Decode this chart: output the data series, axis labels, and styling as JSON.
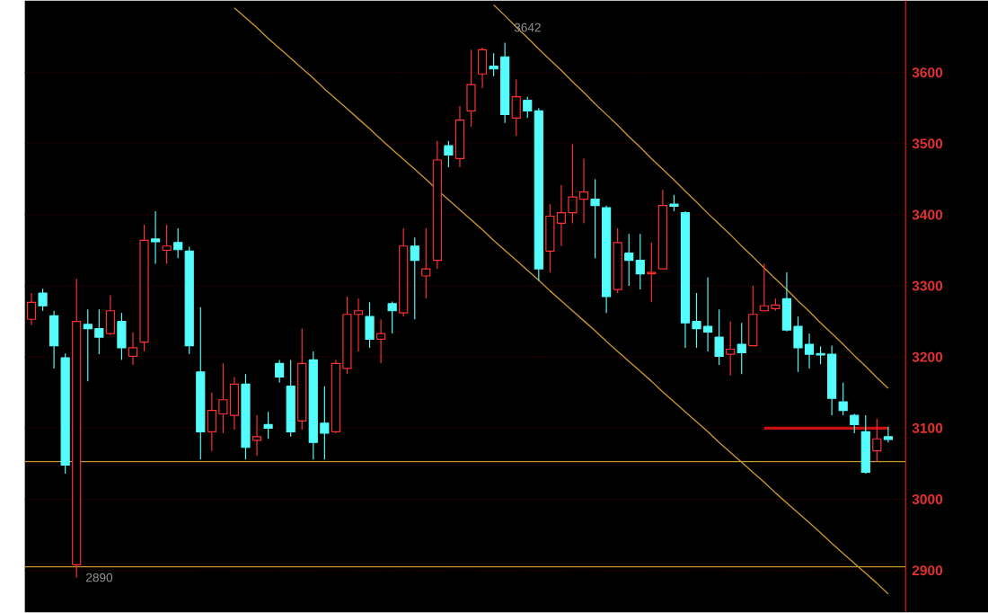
{
  "chart_data": {
    "type": "candlestick",
    "categories": [
      null,
      null,
      null,
      null,
      null,
      null,
      null,
      null,
      null,
      null,
      null,
      null,
      null,
      null,
      null,
      null,
      null,
      null,
      null,
      null,
      null,
      null,
      null,
      null,
      null,
      null,
      null,
      null,
      null,
      null,
      null,
      null,
      null,
      null,
      null,
      null,
      null,
      null,
      null,
      null,
      null,
      null,
      null,
      null,
      null,
      null,
      null,
      null,
      null,
      null,
      null,
      null,
      null,
      null,
      null,
      null,
      null,
      null,
      null,
      null,
      null,
      null,
      null,
      null,
      null,
      null,
      null,
      null,
      null,
      null,
      null,
      null,
      null,
      null,
      null,
      null,
      null
    ],
    "ohlc": [
      [
        3253,
        3290,
        3245,
        3277
      ],
      [
        3290,
        3296,
        3265,
        3272
      ],
      [
        3258,
        3265,
        3184,
        3216
      ],
      [
        3199,
        3205,
        3036,
        3048
      ],
      [
        2908,
        3310,
        2890,
        3250
      ],
      [
        3246,
        3267,
        3166,
        3240
      ],
      [
        3240,
        3267,
        3204,
        3228
      ],
      [
        3233,
        3287,
        3231,
        3265
      ],
      [
        3250,
        3262,
        3196,
        3213
      ],
      [
        3201,
        3235,
        3189,
        3213
      ],
      [
        3221,
        3386,
        3208,
        3364
      ],
      [
        3366,
        3405,
        3331,
        3362
      ],
      [
        3350,
        3386,
        3331,
        3356
      ],
      [
        3361,
        3381,
        3339,
        3351
      ],
      [
        3349,
        3355,
        3204,
        3216
      ],
      [
        3179,
        3270,
        3056,
        3095
      ],
      [
        3095,
        3150,
        3068,
        3125
      ],
      [
        3120,
        3191,
        3093,
        3140
      ],
      [
        3118,
        3172,
        3098,
        3162
      ],
      [
        3162,
        3176,
        3056,
        3073
      ],
      [
        3083,
        3118,
        3061,
        3088
      ],
      [
        3105,
        3123,
        3085,
        3100
      ],
      [
        3191,
        3196,
        3164,
        3172
      ],
      [
        3159,
        3196,
        3088,
        3095
      ],
      [
        3110,
        3240,
        3098,
        3191
      ],
      [
        3196,
        3208,
        3056,
        3080
      ],
      [
        3107,
        3159,
        3056,
        3093
      ],
      [
        3095,
        3196,
        3093,
        3191
      ],
      [
        3184,
        3285,
        3176,
        3260
      ],
      [
        3260,
        3282,
        3208,
        3265
      ],
      [
        3257,
        3277,
        3213,
        3225
      ],
      [
        3225,
        3253,
        3191,
        3233
      ],
      [
        3275,
        3278,
        3233,
        3265
      ],
      [
        3262,
        3381,
        3257,
        3356
      ],
      [
        3356,
        3368,
        3253,
        3336
      ],
      [
        3314,
        3381,
        3282,
        3324
      ],
      [
        3336,
        3504,
        3324,
        3477
      ],
      [
        3497,
        3504,
        3467,
        3484
      ],
      [
        3479,
        3553,
        3467,
        3533
      ],
      [
        3546,
        3632,
        3524,
        3583
      ],
      [
        3598,
        3635,
        3578,
        3632
      ],
      [
        3609,
        3627,
        3595,
        3605
      ],
      [
        3622,
        3642,
        3529,
        3541
      ],
      [
        3536,
        3590,
        3511,
        3566
      ],
      [
        3561,
        3566,
        3536,
        3546
      ],
      [
        3546,
        3550,
        3307,
        3324
      ],
      [
        3349,
        3415,
        3319,
        3398
      ],
      [
        3388,
        3442,
        3356,
        3403
      ],
      [
        3403,
        3499,
        3388,
        3425
      ],
      [
        3422,
        3479,
        3388,
        3432
      ],
      [
        3422,
        3450,
        3339,
        3413
      ],
      [
        3410,
        3413,
        3262,
        3285
      ],
      [
        3295,
        3381,
        3290,
        3361
      ],
      [
        3346,
        3373,
        3300,
        3336
      ],
      [
        3336,
        3373,
        3295,
        3317
      ],
      [
        3317,
        3361,
        3277,
        3319
      ],
      [
        3324,
        3435,
        3324,
        3413
      ],
      [
        3415,
        3428,
        3405,
        3412
      ],
      [
        3403,
        3405,
        3213,
        3248
      ],
      [
        3250,
        3290,
        3213,
        3240
      ],
      [
        3243,
        3312,
        3208,
        3235
      ],
      [
        3228,
        3267,
        3189,
        3201
      ],
      [
        3204,
        3250,
        3174,
        3211
      ],
      [
        3218,
        3248,
        3176,
        3206
      ],
      [
        3216,
        3300,
        3216,
        3260
      ],
      [
        3265,
        3331,
        3265,
        3272
      ],
      [
        3268,
        3282,
        3265,
        3273
      ],
      [
        3282,
        3319,
        3236,
        3238
      ],
      [
        3243,
        3257,
        3179,
        3213
      ],
      [
        3218,
        3233,
        3184,
        3204
      ],
      [
        3205,
        3215,
        3190,
        3203
      ],
      [
        3204,
        3216,
        3118,
        3142
      ],
      [
        3137,
        3164,
        3118,
        3125
      ],
      [
        3118,
        3120,
        3093,
        3105
      ],
      [
        3095,
        3118,
        3036,
        3038
      ],
      [
        3068,
        3113,
        3053,
        3085
      ],
      [
        3088,
        3102,
        3080,
        3084
      ]
    ],
    "colors": [
      "#ff3232",
      "#54fcfc",
      "#54fcfc",
      "#54fcfc",
      "#ff3232",
      "#54fcfc",
      "#54fcfc",
      "#ff3232",
      "#54fcfc",
      "#ff3232",
      "#ff3232",
      "#54fcfc",
      "#ff3232",
      "#54fcfc",
      "#54fcfc",
      "#54fcfc",
      "#ff3232",
      "#ff3232",
      "#ff3232",
      "#54fcfc",
      "#ff3232",
      "#54fcfc",
      "#54fcfc",
      "#54fcfc",
      "#ff3232",
      "#54fcfc",
      "#54fcfc",
      "#ff3232",
      "#ff3232",
      "#ff3232",
      "#54fcfc",
      "#ff3232",
      "#54fcfc",
      "#ff3232",
      "#54fcfc",
      "#ff3232",
      "#ff3232",
      "#54fcfc",
      "#ff3232",
      "#ff3232",
      "#ff3232",
      "#54fcfc",
      "#54fcfc",
      "#ff3232",
      "#54fcfc",
      "#54fcfc",
      "#ff3232",
      "#ff3232",
      "#ff3232",
      "#ff3232",
      "#54fcfc",
      "#54fcfc",
      "#ff3232",
      "#54fcfc",
      "#54fcfc",
      "#ff3232",
      "#ff3232",
      "#54fcfc",
      "#54fcfc",
      "#54fcfc",
      "#54fcfc",
      "#54fcfc",
      "#ff3232",
      "#54fcfc",
      "#ff3232",
      "#ff3232",
      "#ff3232",
      "#54fcfc",
      "#54fcfc",
      "#54fcfc",
      "#54fcfc",
      "#54fcfc",
      "#54fcfc",
      "#54fcfc",
      "#54fcfc",
      "#ff3232",
      "#54fcfc"
    ],
    "series": [
      {
        "type": "line",
        "values": [
          null,
          null,
          null,
          null,
          null,
          null,
          null,
          null,
          null,
          null,
          null,
          null,
          null,
          null,
          null,
          null,
          null,
          null,
          null,
          null,
          null,
          null,
          null,
          null,
          null,
          null,
          null,
          null,
          null,
          null,
          null,
          null,
          null,
          null,
          null,
          null,
          null,
          null,
          null,
          null,
          null,
          3695,
          3680,
          3664,
          3649,
          3633,
          3618,
          3603,
          3587,
          3572,
          3556,
          3541,
          3526,
          3510,
          3495,
          3479,
          3464,
          3449,
          3433,
          3418,
          3402,
          3387,
          3372,
          3356,
          3341,
          3325,
          3310,
          3295,
          3279,
          3264,
          3248,
          3233,
          3218,
          3202,
          3187,
          3171,
          3156
        ],
        "color": "#c89632"
      },
      {
        "type": "line",
        "values": [
          null,
          null,
          null,
          null,
          null,
          null,
          null,
          null,
          null,
          null,
          null,
          null,
          null,
          null,
          null,
          null,
          null,
          null,
          3691,
          3677,
          3663,
          3648,
          3634,
          3620,
          3606,
          3592,
          3577,
          3563,
          3549,
          3535,
          3521,
          3506,
          3492,
          3478,
          3464,
          3450,
          3435,
          3421,
          3407,
          3393,
          3379,
          3364,
          3350,
          3336,
          3322,
          3308,
          3293,
          3279,
          3265,
          3251,
          3237,
          3222,
          3208,
          3194,
          3180,
          3166,
          3151,
          3137,
          3123,
          3109,
          3095,
          3080,
          3066,
          3052,
          3038,
          3024,
          3009,
          2995,
          2981,
          2967,
          2953,
          2938,
          2924,
          2910,
          2896,
          2882,
          2867
        ],
        "color": "#c89632"
      },
      {
        "type": "line",
        "values": [
          null,
          null,
          null,
          null,
          null,
          null,
          null,
          null,
          null,
          null,
          null,
          null,
          null,
          null,
          null,
          null,
          null,
          null,
          null,
          null,
          null,
          null,
          null,
          null,
          null,
          null,
          null,
          null,
          null,
          null,
          null,
          null,
          null,
          null,
          null,
          null,
          null,
          null,
          null,
          null,
          null,
          null,
          null,
          null,
          null,
          null,
          null,
          null,
          null,
          null,
          null,
          null,
          null,
          null,
          null,
          null,
          null,
          null,
          null,
          null,
          null,
          null,
          null,
          null,
          null,
          3100,
          3100,
          3100,
          3100,
          3100,
          3100,
          3100,
          3100,
          3100,
          3100,
          3100,
          3100
        ],
        "color": "#cc1010"
      }
    ],
    "ref_lines": [
      {
        "axis": "y",
        "value": 3053,
        "color": "#c89632"
      },
      {
        "axis": "y",
        "value": 2905,
        "color": "#c89632"
      }
    ],
    "annotations": [
      {
        "text": "3642",
        "y": 3642
      },
      "2890"
    ],
    "ylim": [
      2841,
      3701
    ],
    "yticks": [
      2900,
      3000,
      3100,
      3200,
      3300,
      3400,
      3500,
      3600
    ],
    "grid": "y"
  }
}
